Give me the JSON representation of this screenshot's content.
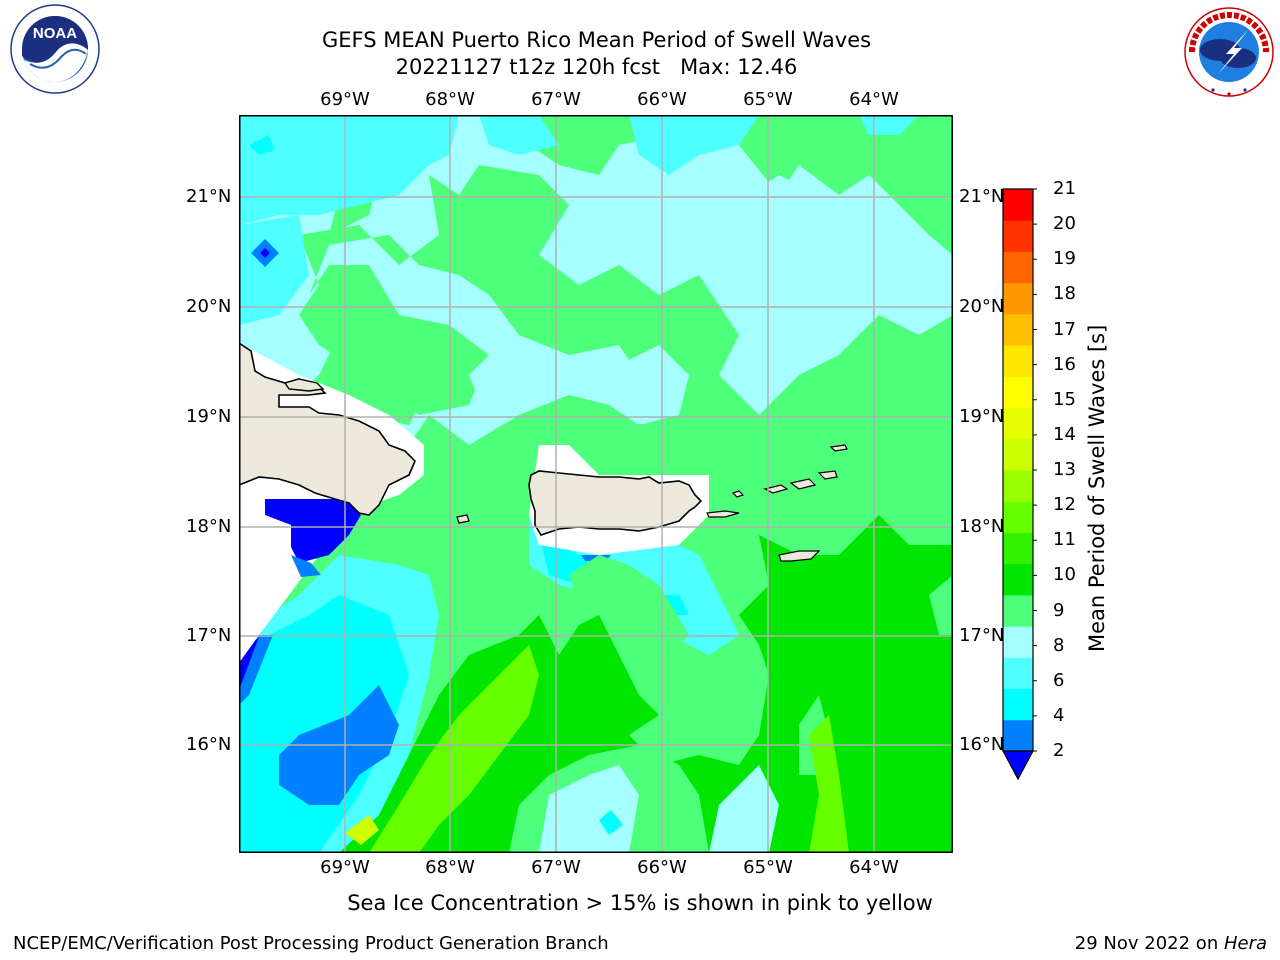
{
  "header": {
    "title_line1": "GEFS MEAN Puerto Rico Mean Period of Swell Waves",
    "title_line2": "20221127 t12z 120h fcst   Max: 12.46"
  },
  "logos": {
    "left": {
      "icon": "noaa-logo-icon",
      "text": "NOAA",
      "ring_text": "NATIONAL OCEANIC AND ATMOSPHERIC ADMINISTRATION · U.S. DEPARTMENT OF COMMERCE"
    },
    "right": {
      "icon": "nws-logo-icon",
      "ring_text": "NATIONAL WEATHER SERVICE"
    }
  },
  "map": {
    "lon_labels": [
      "69°W",
      "68°W",
      "67°W",
      "66°W",
      "65°W",
      "64°W"
    ],
    "lat_labels": [
      "21°N",
      "20°N",
      "19°N",
      "18°N",
      "17°N",
      "16°N"
    ],
    "land_color": "#ece9dc",
    "colors": {
      "deep_blue": "#0000ff",
      "blue": "#0080ff",
      "cyan": "#00ffff",
      "light_cyan": "#4dffff",
      "pale_cyan": "#a6ffff",
      "light_green": "#4dff7a",
      "green": "#00e600",
      "yellow_green": "#66ff00",
      "lime": "#ccff00"
    }
  },
  "colorbar": {
    "label": "Mean Period of Swell Waves [s]",
    "ticks": [
      "21",
      "20",
      "19",
      "18",
      "17",
      "16",
      "15",
      "14",
      "13",
      "12",
      "11",
      "10",
      "9",
      "8",
      "6",
      "4",
      "2"
    ],
    "colors_bottom_to_top": [
      "#0080ff",
      "#00ffff",
      "#4dffff",
      "#a6ffff",
      "#4dff7a",
      "#00e600",
      "#33f200",
      "#66ff00",
      "#99ff00",
      "#ccff00",
      "#e6ff00",
      "#ffff00",
      "#ffe600",
      "#ffbf00",
      "#ff9900",
      "#ff6600",
      "#ff3300",
      "#ff0000"
    ],
    "extend_color": "#0000ff"
  },
  "note": "Sea Ice Concentration > 15% is shown in pink to yellow",
  "footer": {
    "left": "NCEP/EMC/Verification Post Processing Product Generation Branch",
    "right_prefix": "29 Nov 2022 on ",
    "right_italic": "Hera"
  }
}
